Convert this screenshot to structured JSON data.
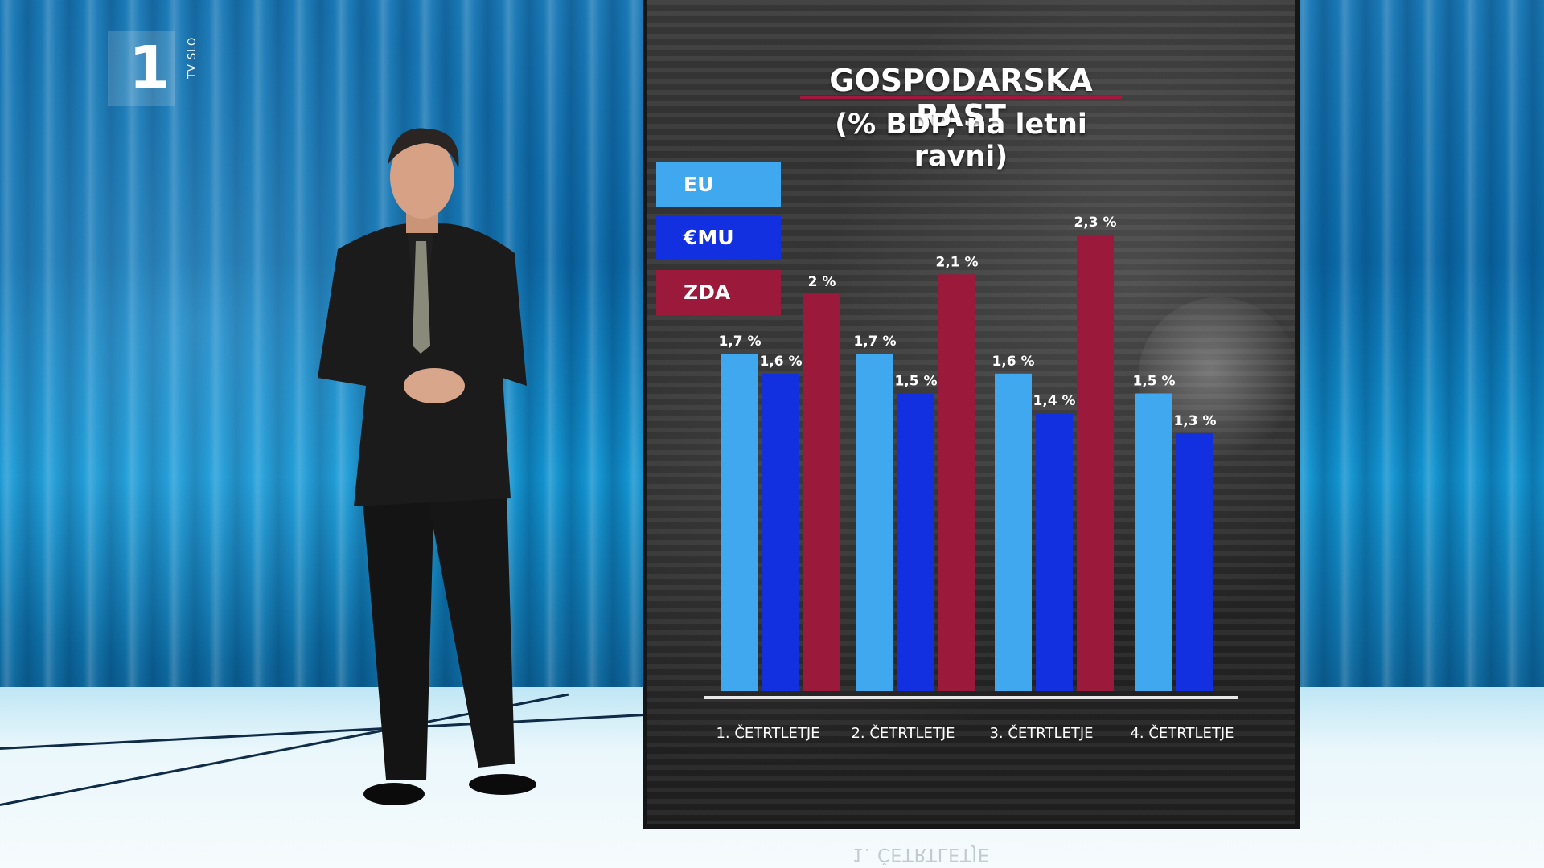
{
  "channel": {
    "number": "1",
    "name": "TV SLO"
  },
  "chart_data": {
    "type": "bar",
    "title": "GOSPODARSKA RAST",
    "subtitle": "(% BDP, na letni ravni)",
    "categories": [
      "1. ČETRTLETJE",
      "2. ČETRTLETJE",
      "3. ČETRTLETJE",
      "4. ČETRTLETJE"
    ],
    "series": [
      {
        "name": "EU",
        "color": "#3fa8ee",
        "values": [
          1.7,
          1.7,
          1.6,
          1.5
        ],
        "labels": [
          "1,7 %",
          "1,7 %",
          "1,6 %",
          "1,5 %"
        ]
      },
      {
        "name": "€MU",
        "color": "#1230e0",
        "values": [
          1.6,
          1.5,
          1.4,
          1.3
        ],
        "labels": [
          "1,6 %",
          "1,5 %",
          "1,4 %",
          "1,3 %"
        ]
      },
      {
        "name": "ZDA",
        "color": "#9b1a3b",
        "values": [
          2.0,
          2.1,
          2.3,
          null
        ],
        "labels": [
          "2 %",
          "2,1 %",
          "2,3 %",
          ""
        ]
      }
    ],
    "legend_position": "top-left",
    "grid": false,
    "ylim": [
      0,
      2.5
    ]
  },
  "reflection_text": "1. ČETRTLETJE"
}
